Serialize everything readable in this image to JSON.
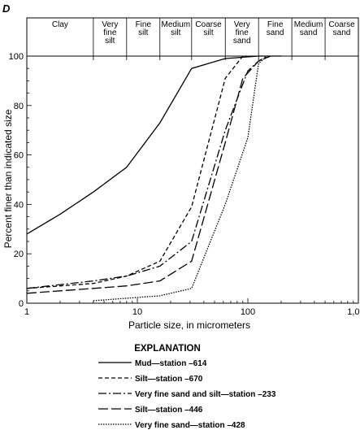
{
  "panel_letter": "D",
  "chart_data": {
    "type": "line",
    "xscale": "log",
    "xlim": [
      1,
      1000
    ],
    "ylim": [
      0,
      100
    ],
    "xlabel": "Particle size, in micrometers",
    "ylabel": "Percent finer than indicated size",
    "x_ticks": [
      {
        "v": 1,
        "label": "1"
      },
      {
        "v": 10,
        "label": "10"
      },
      {
        "v": 100,
        "label": "100"
      },
      {
        "v": 1000,
        "label": "1,000"
      }
    ],
    "y_ticks": [
      {
        "v": 0,
        "label": "0"
      },
      {
        "v": 20,
        "label": "20"
      },
      {
        "v": 40,
        "label": "40"
      },
      {
        "v": 60,
        "label": "60"
      },
      {
        "v": 80,
        "label": "80"
      },
      {
        "v": 100,
        "label": "100"
      }
    ],
    "size_classes": [
      {
        "lines": [
          "Clay"
        ],
        "from": 1,
        "to": 4
      },
      {
        "lines": [
          "Very",
          "fine",
          "silt"
        ],
        "from": 4,
        "to": 8
      },
      {
        "lines": [
          "Fine",
          "silt"
        ],
        "from": 8,
        "to": 16
      },
      {
        "lines": [
          "Medium",
          "silt"
        ],
        "from": 16,
        "to": 31
      },
      {
        "lines": [
          "Coarse",
          "silt"
        ],
        "from": 31,
        "to": 62.5
      },
      {
        "lines": [
          "Very",
          "fine",
          "sand"
        ],
        "from": 62.5,
        "to": 125
      },
      {
        "lines": [
          "Fine",
          "sand"
        ],
        "from": 125,
        "to": 250
      },
      {
        "lines": [
          "Medium",
          "sand"
        ],
        "from": 250,
        "to": 500
      },
      {
        "lines": [
          "Coarse",
          "sand"
        ],
        "from": 500,
        "to": 1000
      }
    ],
    "legend_title": "EXPLANATION",
    "series": [
      {
        "name": "Mud—station –614",
        "dash": "",
        "points": [
          [
            1,
            28
          ],
          [
            2,
            36
          ],
          [
            4,
            45
          ],
          [
            8,
            55
          ],
          [
            16,
            73
          ],
          [
            31,
            95
          ],
          [
            62.5,
            99
          ],
          [
            125,
            100
          ],
          [
            200,
            100
          ]
        ]
      },
      {
        "name": "Silt—station –670",
        "dash": "5,3",
        "points": [
          [
            1,
            6
          ],
          [
            4,
            8
          ],
          [
            8,
            11
          ],
          [
            16,
            17
          ],
          [
            31,
            39
          ],
          [
            62.5,
            91
          ],
          [
            90,
            100
          ]
        ]
      },
      {
        "name": "Very fine sand and silt—station –233",
        "dash": "10,3,2,3",
        "points": [
          [
            1,
            6
          ],
          [
            4,
            9
          ],
          [
            8,
            11
          ],
          [
            16,
            15
          ],
          [
            31,
            25
          ],
          [
            62.5,
            70
          ],
          [
            100,
            94
          ],
          [
            125,
            98
          ],
          [
            150,
            100
          ]
        ]
      },
      {
        "name": "Silt—station –446",
        "dash": "12,4",
        "points": [
          [
            1,
            4
          ],
          [
            4,
            6
          ],
          [
            8,
            7
          ],
          [
            16,
            9
          ],
          [
            31,
            17
          ],
          [
            62.5,
            65
          ],
          [
            90,
            91
          ],
          [
            125,
            98
          ],
          [
            160,
            100
          ]
        ]
      },
      {
        "name": "Very fine sand—station –428",
        "dash": "1.5,1.5",
        "points": [
          [
            4,
            1
          ],
          [
            8,
            2
          ],
          [
            16,
            3
          ],
          [
            31,
            6
          ],
          [
            62.5,
            40
          ],
          [
            100,
            67
          ],
          [
            125,
            97
          ],
          [
            150,
            100
          ]
        ]
      }
    ]
  }
}
